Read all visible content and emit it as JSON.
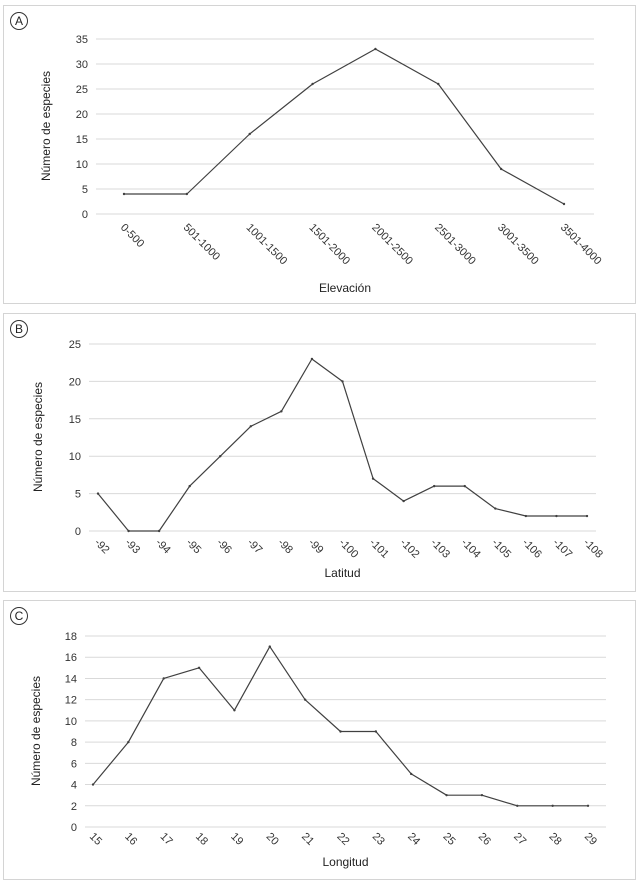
{
  "chart_data": [
    {
      "type": "line",
      "panel": "A",
      "xlabel": "Elevación",
      "ylabel": "Número de especies",
      "ylim": [
        0,
        35
      ],
      "yticks": [
        0,
        5,
        10,
        15,
        20,
        25,
        30,
        35
      ],
      "categories": [
        "0-500",
        "501-1000",
        "1001-1500",
        "1501-2000",
        "2001-2500",
        "2501-3000",
        "3001-3500",
        "3501-4000"
      ],
      "values": [
        4,
        4,
        16,
        26,
        33,
        26,
        9,
        2
      ],
      "grid": true,
      "line_color": "#404040"
    },
    {
      "type": "line",
      "panel": "B",
      "xlabel": "Latitud",
      "ylabel": "Número de especies",
      "ylim": [
        0,
        25
      ],
      "yticks": [
        0,
        5,
        10,
        15,
        20,
        25
      ],
      "categories": [
        "-92",
        "-93",
        "-94",
        "-95",
        "-96",
        "-97",
        "-98",
        "-99",
        "-100",
        "-101",
        "-102",
        "-103",
        "-104",
        "-105",
        "-106",
        "-107",
        "-108"
      ],
      "values": [
        5,
        0,
        0,
        6,
        10,
        14,
        16,
        23,
        20,
        7,
        4,
        6,
        6,
        3,
        2,
        2,
        2
      ],
      "grid": true,
      "line_color": "#404040"
    },
    {
      "type": "line",
      "panel": "C",
      "xlabel": "Longitud",
      "ylabel": "Número de especies",
      "ylim": [
        0,
        18
      ],
      "yticks": [
        0,
        2,
        4,
        6,
        8,
        10,
        12,
        14,
        16,
        18
      ],
      "categories": [
        "15",
        "16",
        "17",
        "18",
        "19",
        "20",
        "21",
        "22",
        "23",
        "24",
        "25",
        "26",
        "27",
        "28",
        "29"
      ],
      "values": [
        4,
        8,
        14,
        15,
        11,
        17,
        12,
        9,
        9,
        5,
        3,
        3,
        2,
        2,
        2
      ],
      "grid": true,
      "line_color": "#404040"
    }
  ]
}
